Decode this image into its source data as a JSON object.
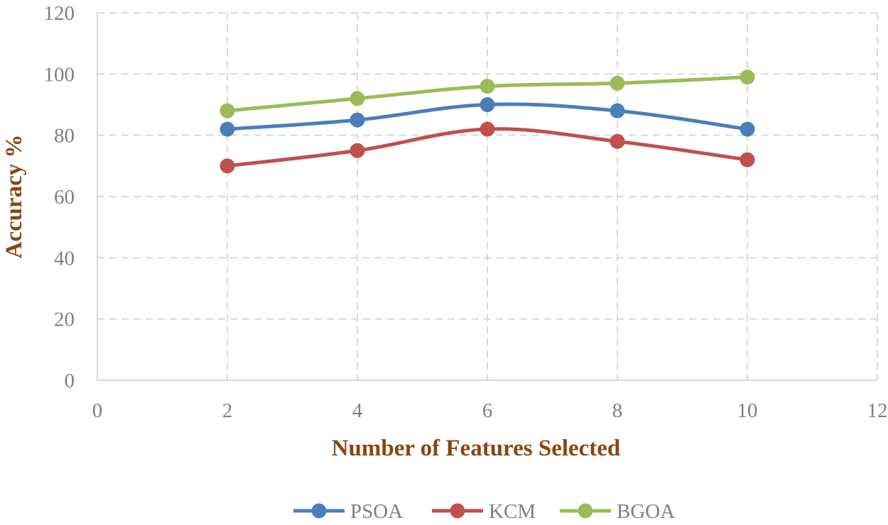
{
  "chart_data": {
    "type": "line",
    "xlabel": "Number of Features Selected",
    "ylabel": "Accuracy %",
    "xlim": [
      0,
      12
    ],
    "ylim": [
      0,
      120
    ],
    "xticks": [
      "0",
      "2",
      "4",
      "6",
      "8",
      "10",
      "12"
    ],
    "yticks": [
      "0",
      "20",
      "40",
      "60",
      "80",
      "100",
      "120"
    ],
    "grid": true,
    "legend_position": "bottom",
    "x": [
      2,
      4,
      6,
      8,
      10
    ],
    "series": [
      {
        "name": "PSOA",
        "color": "#4a7ebb",
        "values": [
          82,
          85,
          90,
          88,
          82
        ]
      },
      {
        "name": "KCM",
        "color": "#c0504d",
        "values": [
          70,
          75,
          82,
          78,
          72
        ]
      },
      {
        "name": "BGOA",
        "color": "#9bbb59",
        "values": [
          88,
          92,
          96,
          97,
          99
        ]
      }
    ]
  }
}
